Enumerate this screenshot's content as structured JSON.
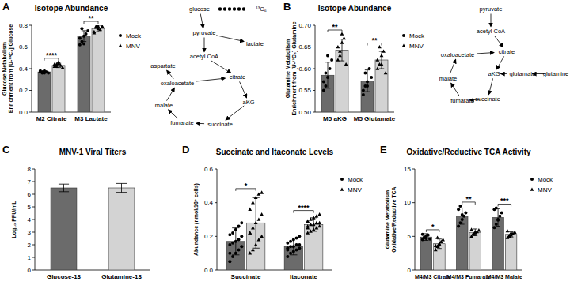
{
  "chart_data": [
    {
      "type": "bar",
      "panel": "A",
      "title": "Isotope Abundance",
      "y_label": [
        "Glucose Metabolism",
        "Enrichment from [U-¹³C₆] Glucose"
      ],
      "categories": [
        "M2 Citrate",
        "M3 Lactate"
      ],
      "series": [
        {
          "name": "Mock",
          "color": "#6b6b6b",
          "marker": "circle",
          "values": [
            0.37,
            0.7
          ],
          "errors": [
            0.01,
            0.05
          ],
          "points": [
            [
              0.37,
              0.36,
              0.38,
              0.37,
              0.36,
              0.38,
              0.37,
              0.36
            ],
            [
              0.62,
              0.65,
              0.7,
              0.72,
              0.75,
              0.68,
              0.77,
              0.63
            ]
          ]
        },
        {
          "name": "MNV",
          "color": "#d3d3d3",
          "marker": "triangle",
          "values": [
            0.43,
            0.77
          ],
          "errors": [
            0.02,
            0.03
          ],
          "points": [
            [
              0.42,
              0.44,
              0.45,
              0.43,
              0.41,
              0.44,
              0.42,
              0.46
            ],
            [
              0.74,
              0.78,
              0.79,
              0.76,
              0.79,
              0.73,
              0.79,
              0.77
            ]
          ]
        }
      ],
      "significance": [
        "****",
        "**"
      ],
      "ylim": [
        0,
        0.8
      ],
      "yticks": [
        {
          "value": 0,
          "label": "0.0"
        },
        {
          "value": 0.2,
          "label": "0.2"
        },
        {
          "value": 0.4,
          "label": "0.4"
        },
        {
          "value": 0.6,
          "label": "0.6"
        },
        {
          "value": 0.8,
          "label": "0.8"
        }
      ],
      "legend": "right",
      "grid": false
    },
    {
      "type": "bar",
      "panel": "B",
      "title": "Isotope Abundance",
      "y_label": [
        "Glutamine Metabolism",
        "Enrichment from [U-¹³C₅] Glutamine"
      ],
      "categories": [
        "M5 aKG",
        "M5 Glutamate"
      ],
      "series": [
        {
          "name": "Mock",
          "color": "#6b6b6b",
          "marker": "circle",
          "values": [
            0.585,
            0.572
          ],
          "errors": [
            0.03,
            0.025
          ],
          "points": [
            [
              0.55,
              0.56,
              0.58,
              0.6,
              0.62,
              0.57,
              0.59,
              0.63
            ],
            [
              0.55,
              0.56,
              0.57,
              0.6,
              0.58,
              0.54,
              0.59,
              0.56
            ]
          ]
        },
        {
          "name": "MNV",
          "color": "#d3d3d3",
          "marker": "triangle",
          "values": [
            0.643,
            0.62
          ],
          "errors": [
            0.025,
            0.02
          ],
          "points": [
            [
              0.62,
              0.64,
              0.66,
              0.67,
              0.61,
              0.65,
              0.63,
              0.68
            ],
            [
              0.6,
              0.61,
              0.63,
              0.64,
              0.59,
              0.62,
              0.65,
              0.61
            ]
          ]
        }
      ],
      "significance": [
        "**",
        "**"
      ],
      "ylim": [
        0.5,
        0.7
      ],
      "yticks": [
        {
          "value": 0.5,
          "label": "0.50"
        },
        {
          "value": 0.55,
          "label": "0.55"
        },
        {
          "value": 0.6,
          "label": "0.60"
        },
        {
          "value": 0.65,
          "label": "0.65"
        },
        {
          "value": 0.7,
          "label": "0.70"
        }
      ],
      "legend": "right",
      "grid": false
    },
    {
      "type": "bar",
      "panel": "C",
      "title": "MNV-1 Viral Titers",
      "y_label": [
        "Log₁₀ PFU/mL"
      ],
      "categories": [
        "Glucose-13",
        "Glutamine-13"
      ],
      "values": [
        6.5,
        6.5
      ],
      "errors": [
        0.3,
        0.35
      ],
      "colors": [
        "#6b6b6b",
        "#d3d3d3"
      ],
      "ylim": [
        0,
        8
      ],
      "yticks": [
        0,
        1,
        2,
        3,
        4,
        5,
        6,
        7,
        8
      ],
      "grid": false
    },
    {
      "type": "bar",
      "panel": "D",
      "title": "Succinate and Itaconate Levels",
      "y_label": [
        "Abundance (nmol/10⁶ cells)"
      ],
      "categories": [
        "Succinate",
        "Itaconate"
      ],
      "series": [
        {
          "name": "Mock",
          "color": "#6b6b6b",
          "marker": "circle",
          "values": [
            0.17,
            0.14
          ],
          "errors": [
            0.08,
            0.05
          ],
          "points": [
            [
              0.05,
              0.08,
              0.1,
              0.12,
              0.14,
              0.15,
              0.16,
              0.17,
              0.18,
              0.2,
              0.21,
              0.22,
              0.24,
              0.26,
              0.28,
              0.1
            ],
            [
              0.08,
              0.1,
              0.11,
              0.12,
              0.13,
              0.13,
              0.14,
              0.14,
              0.15,
              0.15,
              0.16,
              0.17,
              0.18,
              0.19,
              0.2,
              0.12
            ]
          ]
        },
        {
          "name": "MNV",
          "color": "#d3d3d3",
          "marker": "triangle",
          "values": [
            0.28,
            0.27
          ],
          "errors": [
            0.15,
            0.04
          ],
          "points": [
            [
              0.1,
              0.12,
              0.15,
              0.18,
              0.2,
              0.22,
              0.25,
              0.28,
              0.3,
              0.33,
              0.36,
              0.4,
              0.43,
              0.45,
              0.46,
              0.22
            ],
            [
              0.22,
              0.23,
              0.24,
              0.25,
              0.26,
              0.26,
              0.27,
              0.27,
              0.28,
              0.28,
              0.29,
              0.3,
              0.31,
              0.32,
              0.33,
              0.25
            ]
          ]
        }
      ],
      "significance": [
        "*",
        "****"
      ],
      "ylim": [
        0,
        0.6
      ],
      "yticks": [
        {
          "value": 0,
          "label": "0.0"
        },
        {
          "value": 0.2,
          "label": "0.2"
        },
        {
          "value": 0.4,
          "label": "0.4"
        },
        {
          "value": 0.6,
          "label": "0.6"
        }
      ],
      "legend": "right",
      "grid": false
    },
    {
      "type": "bar",
      "panel": "E",
      "title": "Oxidative/Reductive TCA Activity",
      "y_label": [
        "Glutamine Metabolism",
        "Oxidative/Reductive TCA"
      ],
      "categories": [
        "M4/M3 Citrate",
        "M4/M3 Fumarate",
        "M4/M3 Malate"
      ],
      "series": [
        {
          "name": "Mock",
          "color": "#6b6b6b",
          "marker": "circle",
          "values": [
            4.9,
            8.0,
            7.8
          ],
          "errors": [
            0.5,
            1.2,
            1.3
          ],
          "points": [
            [
              4.5,
              4.8,
              5.0,
              5.2,
              4.6,
              5.3,
              4.9,
              4.7
            ],
            [
              6.5,
              7.0,
              7.5,
              8.0,
              8.5,
              9.0,
              9.5,
              8.2
            ],
            [
              6.3,
              6.8,
              7.5,
              8.0,
              8.5,
              9.0,
              9.2,
              7.4
            ]
          ]
        },
        {
          "name": "MNV",
          "color": "#d3d3d3",
          "marker": "triangle",
          "values": [
            3.9,
            5.6,
            5.3
          ],
          "errors": [
            0.7,
            0.5,
            0.4
          ],
          "points": [
            [
              3.0,
              3.5,
              3.8,
              4.2,
              4.5,
              3.6,
              4.8,
              3.9
            ],
            [
              5.0,
              5.3,
              5.5,
              5.7,
              5.9,
              6.0,
              5.4,
              5.6
            ],
            [
              4.8,
              5.0,
              5.2,
              5.4,
              5.6,
              5.8,
              5.1,
              5.5
            ]
          ]
        }
      ],
      "significance": [
        "*",
        "**",
        "***"
      ],
      "ylim": [
        0,
        15
      ],
      "yticks": [
        0,
        5,
        10,
        15
      ],
      "legend": "right",
      "grid": false
    }
  ],
  "diagrams": [
    {
      "panel": "A",
      "nodes": [
        {
          "label": "glucose"
        },
        {
          "label": "pyruvate"
        },
        {
          "label": "lactate"
        },
        {
          "label": "acetyl CoA"
        },
        {
          "label": "citrate"
        },
        {
          "label": "aKG"
        },
        {
          "label": "succinate"
        },
        {
          "label": "fumarate"
        },
        {
          "label": "malate"
        },
        {
          "label": "oxaloacetate"
        },
        {
          "label": "aspartate"
        },
        {
          "label": "¹³C₆"
        }
      ],
      "edges": [
        [
          0,
          1
        ],
        [
          1,
          2
        ],
        [
          1,
          3
        ],
        [
          3,
          4
        ],
        [
          9,
          4
        ],
        [
          4,
          5
        ],
        [
          5,
          6
        ],
        [
          6,
          7
        ],
        [
          7,
          8
        ],
        [
          8,
          9
        ],
        [
          9,
          10
        ]
      ]
    },
    {
      "panel": "B",
      "nodes": [
        {
          "label": "pyruvate"
        },
        {
          "label": "acetyl CoA"
        },
        {
          "label": "citrate"
        },
        {
          "label": "aKG"
        },
        {
          "label": "glutamate"
        },
        {
          "label": "glutamine"
        },
        {
          "label": "succinate"
        },
        {
          "label": "fumarate"
        },
        {
          "label": "malate"
        },
        {
          "label": "oxaloacetate"
        }
      ],
      "edges": [
        [
          0,
          1
        ],
        [
          1,
          2
        ],
        [
          9,
          2
        ],
        [
          2,
          3
        ],
        [
          3,
          6
        ],
        [
          6,
          7
        ],
        [
          7,
          8
        ],
        [
          8,
          9
        ],
        [
          5,
          4
        ],
        [
          4,
          3
        ]
      ]
    }
  ]
}
